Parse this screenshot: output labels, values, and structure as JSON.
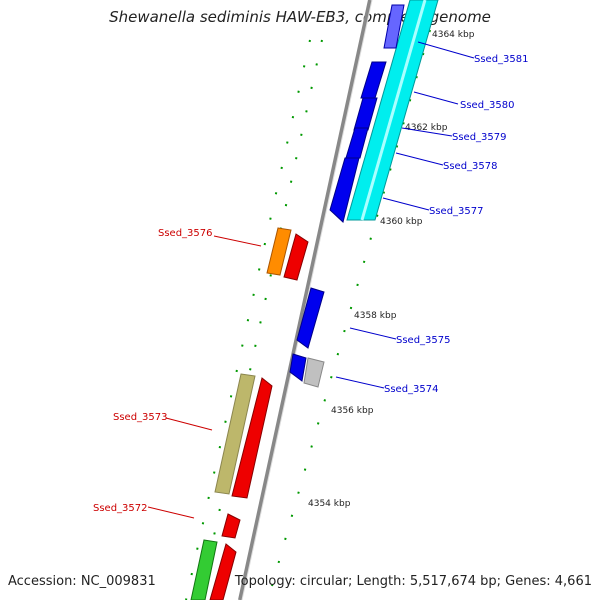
{
  "title": "Shewanella sediminis HAW-EB3, complete genome",
  "accession_text": "Accession: NC_009831",
  "topology_text": "Topology: circular; Length: 5,517,674 bp; Genes: 4,661",
  "ruler_ticks": [
    "4364 kbp",
    "4362 kbp",
    "4360 kbp",
    "4358 kbp",
    "4356 kbp",
    "4354 kbp"
  ],
  "genes": [
    {
      "id": "Ssed_3581",
      "strand": "+",
      "color": "#0000cc"
    },
    {
      "id": "Ssed_3580",
      "strand": "+",
      "color": "#0000cc"
    },
    {
      "id": "Ssed_3579",
      "strand": "+",
      "color": "#0000cc"
    },
    {
      "id": "Ssed_3578",
      "strand": "+",
      "color": "#0000cc"
    },
    {
      "id": "Ssed_3577",
      "strand": "+",
      "color": "#0000cc"
    },
    {
      "id": "Ssed_3576",
      "strand": "-",
      "color": "#cc0000"
    },
    {
      "id": "Ssed_3575",
      "strand": "+",
      "color": "#0000cc"
    },
    {
      "id": "Ssed_3574",
      "strand": "+",
      "color": "#0000cc"
    },
    {
      "id": "Ssed_3573",
      "strand": "-",
      "color": "#cc0000"
    },
    {
      "id": "Ssed_3572",
      "strand": "-",
      "color": "#cc0000"
    }
  ],
  "colors": {
    "forward_cds": "#0000ee",
    "reverse_cds": "#ee0000",
    "cyan_feature": "#00eeee",
    "orange_feature": "#ff8c00",
    "khaki_feature": "#bdb76b",
    "green_feature": "#33cc33",
    "grey_feature": "#c0c0c0",
    "backbone": "#888888",
    "tick": "#008800"
  }
}
